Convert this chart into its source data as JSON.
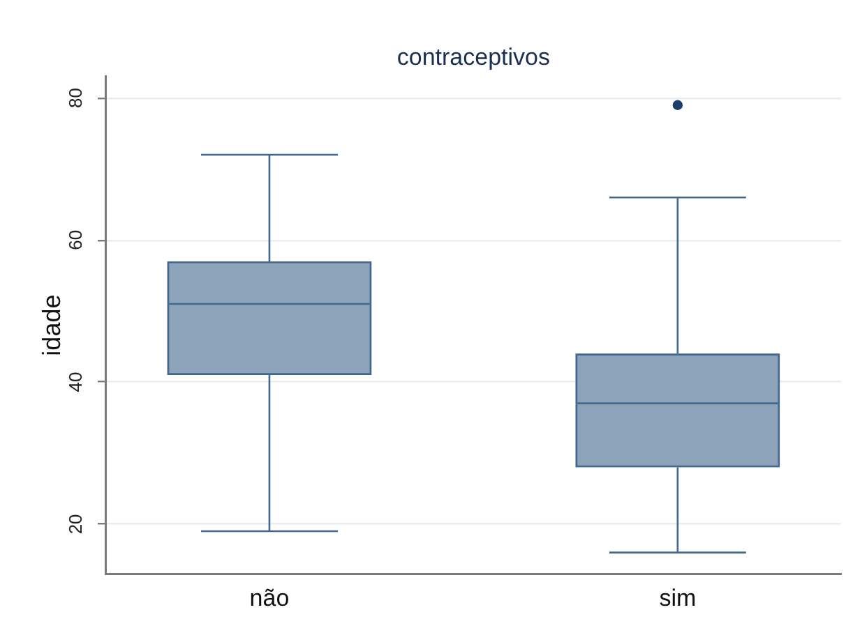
{
  "chart_data": {
    "type": "box",
    "title": "contraceptivos",
    "ylabel": "idade",
    "categories": [
      "não",
      "sim"
    ],
    "color": "#8da3b9",
    "boxes": [
      {
        "low": 19,
        "q1": 41,
        "median": 51,
        "q3": 57,
        "high": 72
      },
      {
        "low": 16,
        "q1": 28,
        "median": 37,
        "q3": 44,
        "high": 66,
        "outliers": [
          79
        ]
      }
    ],
    "ylim": [
      13,
      83
    ],
    "yticks": [
      20,
      40,
      60,
      80
    ],
    "grid": "y"
  }
}
